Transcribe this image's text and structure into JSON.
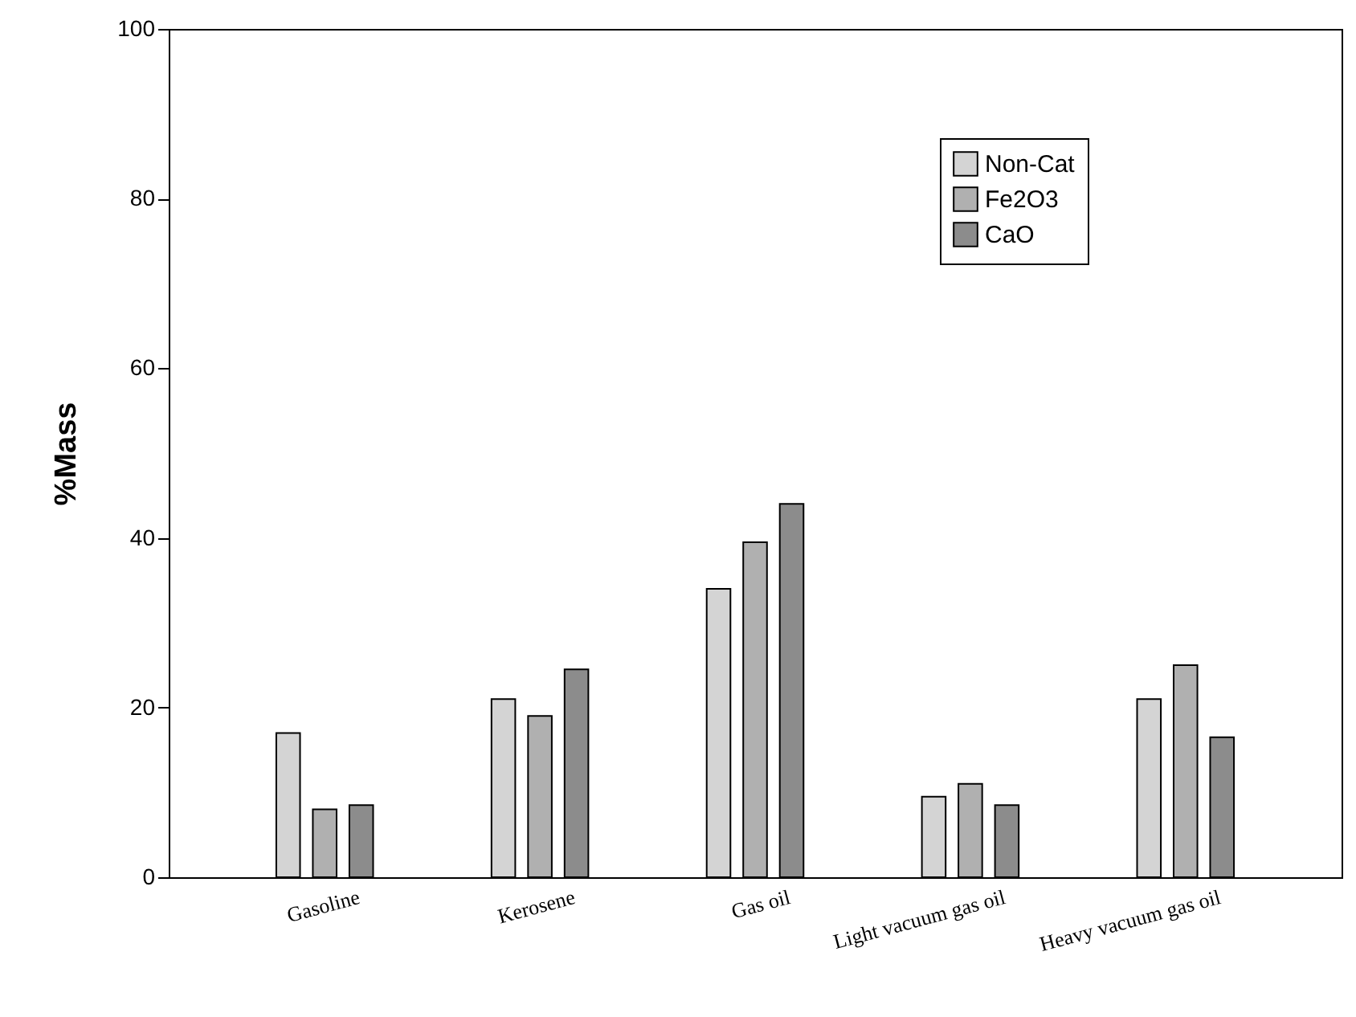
{
  "chart_data": {
    "type": "bar",
    "ylabel": "%Mass",
    "categories": [
      "Gasoline",
      "Kerosene",
      "Gas oil",
      "Light vacuum gas oil",
      "Heavy vacuum gas oil"
    ],
    "series": [
      {
        "name": "Non-Cat",
        "color": "#d4d4d4",
        "values": [
          17,
          21,
          34,
          9.5,
          21
        ]
      },
      {
        "name": "Fe2O3",
        "color": "#b0b0b0",
        "values": [
          8,
          19,
          39.5,
          11,
          25
        ]
      },
      {
        "name": "CaO",
        "color": "#8c8c8c",
        "values": [
          8.5,
          24.5,
          44,
          8.5,
          16.5
        ]
      }
    ],
    "ylim": [
      0,
      100
    ],
    "yticks": [
      0,
      20,
      40,
      60,
      80,
      100
    ],
    "grid": false,
    "legend": "top right"
  }
}
